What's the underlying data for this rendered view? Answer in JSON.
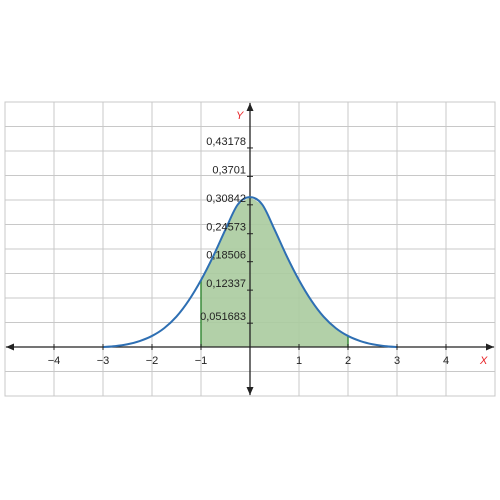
{
  "chart_data": {
    "type": "area",
    "title": "",
    "xlabel": "X",
    "ylabel": "Y",
    "xlim": [
      -5,
      5
    ],
    "ylim": [
      -0.1,
      0.5
    ],
    "grid": true,
    "x_ticks": [
      -4,
      -3,
      -2,
      -1,
      1,
      2,
      3,
      4
    ],
    "x_tick_labels": [
      "−4",
      "−3",
      "−2",
      "−1",
      "1",
      "2",
      "3",
      "4"
    ],
    "y_ticks": [
      0.051683,
      0.12337,
      0.18506,
      0.24573,
      0.30842,
      0.3701,
      0.43178
    ],
    "y_tick_labels": [
      "0,051683",
      "0,12337",
      "0,18506",
      "0,24573",
      "0,30842",
      "0,3701",
      "0,43178"
    ],
    "curve": {
      "x": [
        -3,
        -2.75,
        -2.5,
        -2.25,
        -2,
        -1.75,
        -1.5,
        -1.25,
        -1,
        -0.75,
        -0.5,
        -0.25,
        0,
        0.25,
        0.5,
        0.75,
        1,
        1.25,
        1.5,
        1.75,
        2,
        2.25,
        2.5,
        2.75,
        3
      ],
      "y": [
        0.0,
        0.002,
        0.006,
        0.013,
        0.024,
        0.041,
        0.066,
        0.101,
        0.145,
        0.197,
        0.255,
        0.309,
        0.325,
        0.309,
        0.255,
        0.197,
        0.145,
        0.101,
        0.066,
        0.041,
        0.024,
        0.013,
        0.006,
        0.002,
        0.0
      ]
    },
    "shaded_interval": [
      -1,
      2
    ],
    "colors": {
      "curve": "#2e6fb3",
      "fill": "#aacb9f",
      "fill_edge": "#3a8a3a",
      "grid": "#c8c8c8",
      "axis": "#222222",
      "axis_name": "#e8262a"
    }
  }
}
